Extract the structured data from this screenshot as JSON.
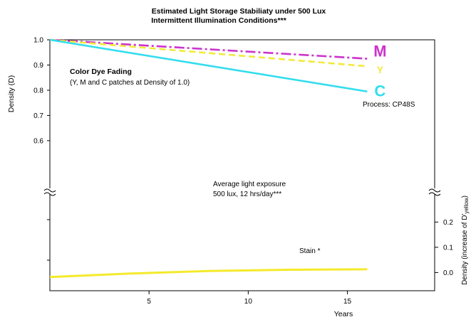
{
  "chart_data": {
    "type": "line",
    "title": [
      "Estimated Light Storage Stabiliaty under 500 Lux",
      "Intermittent Illumination Conditions***"
    ],
    "xlabel": "Years",
    "ylabel_left": "Density (D)",
    "ylabel_right": "Density (increase of D'",
    "ylabel_right_subscript": "yellow",
    "ylabel_right_close": ")",
    "x_ticks": [
      5,
      10,
      15
    ],
    "xlim": [
      0,
      19.4
    ],
    "top_panel": {
      "ylim": [
        0.47,
        1.0
      ],
      "y_ticks": [
        "1.0",
        "0.9",
        "0.8",
        "0.7",
        "0.6"
      ],
      "x": [
        0,
        16
      ],
      "series": [
        {
          "name": "M",
          "color": "#cc33cc",
          "values": [
            1.0,
            0.925
          ],
          "style": "dash-dot"
        },
        {
          "name": "Y",
          "color": "#f2ea3a",
          "values": [
            1.0,
            0.895
          ],
          "style": "dashed"
        },
        {
          "name": "C",
          "color": "#33ddee",
          "values": [
            1.0,
            0.795
          ],
          "style": "solid"
        }
      ]
    },
    "bottom_panel": {
      "ylim": [
        -0.12,
        0.28
      ],
      "y_ticks": [
        "0.2",
        "0.1",
        "0.0"
      ],
      "series": [
        {
          "name": "Stain *",
          "color": "#f4ea2a",
          "x": [
            0,
            4,
            8,
            12,
            16
          ],
          "values": [
            -0.018,
            -0.004,
            0.006,
            0.011,
            0.013
          ]
        }
      ]
    },
    "annotations": {
      "dye_title": "Color Dye Fading",
      "dye_sub": "(Y, M and C patches at Density of 1.0)",
      "process": "Process: CP48S",
      "exposure_1": "Average light exposure",
      "exposure_2": "500 lux, 12 hrs/day***",
      "stain": "Stain *"
    },
    "grid": false
  }
}
